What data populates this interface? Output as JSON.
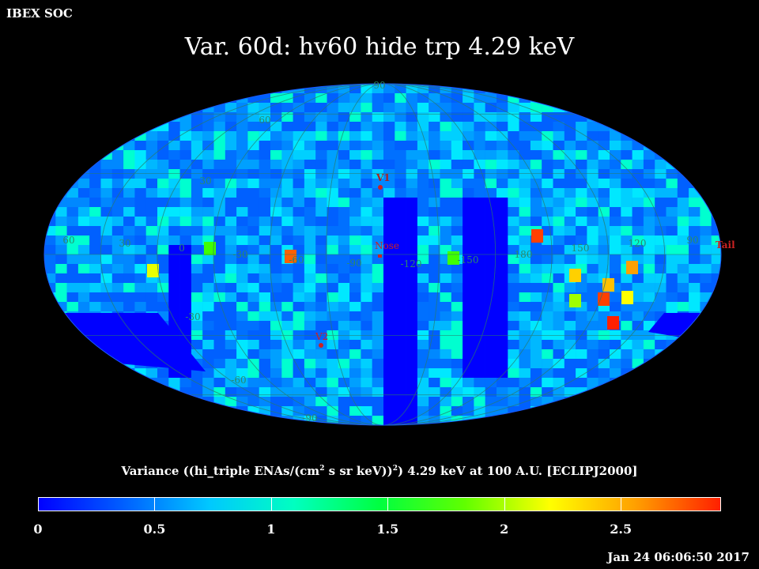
{
  "header": {
    "org": "IBEX SOC",
    "title": "Var. 60d: hv60 hide trp 4.29 keV",
    "timestamp": "Jan 24 06:06:50 2017"
  },
  "map": {
    "projection": "mollweide",
    "lon_labels": [
      "60",
      "30",
      "0",
      "-30",
      "-60",
      "-90",
      "-120",
      "-150",
      "180",
      "150",
      "120",
      "90"
    ],
    "lat_labels": [
      "60",
      "30",
      "-30",
      "-60"
    ],
    "pole_labels": [
      "90",
      "-90"
    ],
    "markers": [
      {
        "name": "V1",
        "label": "V1"
      },
      {
        "name": "Nose",
        "label": "Nose"
      },
      {
        "name": "V2",
        "label": "V2"
      },
      {
        "name": "Tail",
        "label": "Tail"
      }
    ],
    "background_color": "#0050ff",
    "grid_color": "#2a7a6a",
    "marker_color": "#cc2222"
  },
  "colorbar": {
    "label_html": "Variance ((hi_triple ENAs/(cm",
    "label_parts": [
      "Variance ((hi_triple ENAs/(cm",
      "2",
      " s sr keV))",
      "2",
      ") 4.29 keV at 100 A.U. [ECLIPJ2000]"
    ],
    "ticks": [
      "0",
      "0.5",
      "1",
      "1.5",
      "2",
      "2.5"
    ],
    "tick_values": [
      0,
      0.5,
      1,
      1.5,
      2,
      2.5
    ],
    "min": 0,
    "max": 2.93,
    "colors": [
      "#0000ff",
      "#0060ff",
      "#00c8ff",
      "#00ffc0",
      "#00ff40",
      "#60ff00",
      "#ffff00",
      "#ffa000",
      "#ff2000"
    ]
  }
}
